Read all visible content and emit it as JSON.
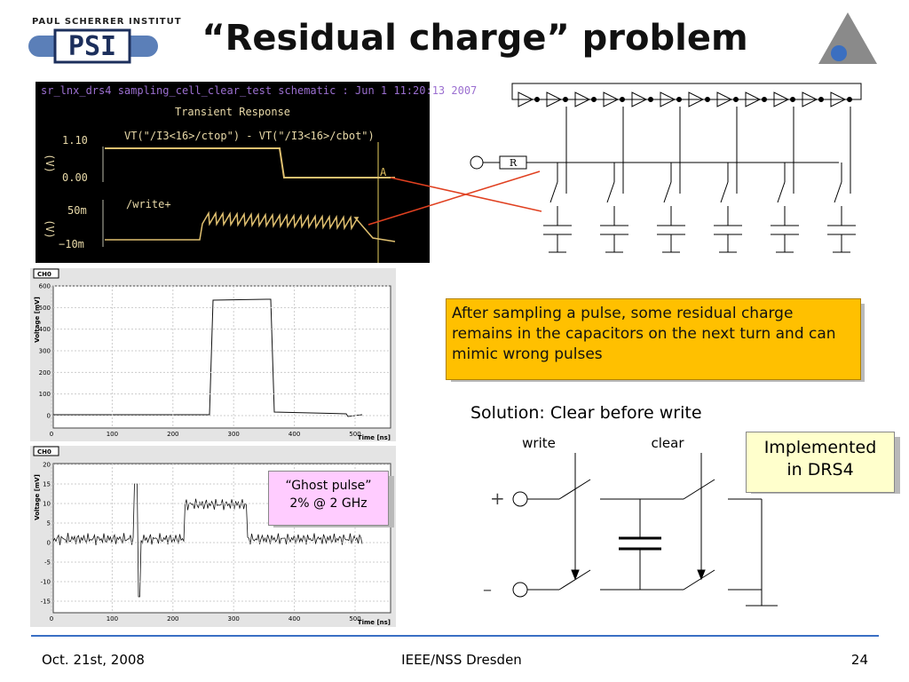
{
  "header": {
    "institute": "PAUL SCHERRER INSTITUT",
    "logo": "PSI",
    "title": "“Residual charge” problem"
  },
  "sim": {
    "caption": "sr_lnx_drs4 sampling_cell_clear_test schematic : Jun  1 11:20:13 2007",
    "title": "Transient Response",
    "trace1": "VT(\"/I3<16>/ctop\") - VT(\"/I3<16>/cbot\")",
    "trace2": "/write+",
    "yticks1": [
      "1.10",
      "0.00"
    ],
    "yticks2": [
      "50m",
      "−10m"
    ],
    "unit": "(V)",
    "marker": "A"
  },
  "schematic": {
    "resistor": "R"
  },
  "scope1": {
    "tag": "CH0",
    "ylabel": "Voltage [mV]",
    "xlabel": "Time [ns]",
    "xticks": [
      "0",
      "100",
      "200",
      "300",
      "400",
      "500"
    ],
    "yticks": [
      "0",
      "100",
      "200",
      "300",
      "400",
      "500",
      "600"
    ]
  },
  "scope2": {
    "tag": "CH0",
    "ylabel": "Voltage [mV]",
    "xlabel": "Time [ns]",
    "xticks": [
      "0",
      "100",
      "200",
      "300",
      "400",
      "500"
    ],
    "yticks": [
      "20",
      "15",
      "10",
      "5",
      "0",
      "-5",
      "-10",
      "-15"
    ]
  },
  "ghost": {
    "line1": "“Ghost pulse”",
    "line2": "2% @ 2 GHz"
  },
  "callout": "After sampling a pulse, some residual charge remains in the capacitors on the next turn and can mimic wrong pulses",
  "solution": "Solution: Clear before write",
  "switches": {
    "write": "write",
    "clear": "clear",
    "plus": "+",
    "minus": "–"
  },
  "implemented": {
    "line1": "Implemented",
    "line2": "in DRS4"
  },
  "footer": {
    "date": "Oct. 21st, 2008",
    "venue": "IEEE/NSS Dresden",
    "page": "24"
  }
}
